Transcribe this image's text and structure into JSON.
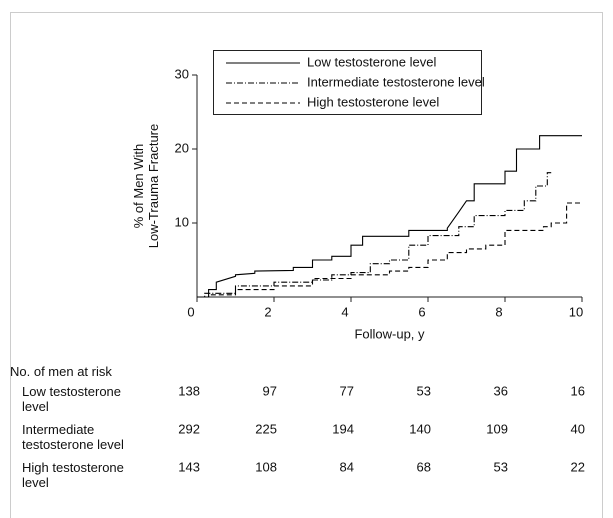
{
  "chart_data": {
    "type": "step-line",
    "xlabel": "Follow-up, y",
    "ylabel": "% of Men With\nLow-Trauma Fracture",
    "xlim": [
      0,
      10
    ],
    "xticks": [
      0,
      2,
      4,
      6,
      8,
      10
    ],
    "ylim": [
      0,
      30
    ],
    "yticks": [
      10,
      20,
      30
    ],
    "legend": "top-left",
    "series": [
      {
        "name": "Low testosterone level",
        "color": "#000000",
        "line_style": "solid",
        "x": [
          0,
          0.3,
          0.3,
          0.5,
          0.5,
          1,
          1,
          1.5,
          1.5,
          2.5,
          2.5,
          3,
          3,
          3.5,
          3.5,
          4,
          4,
          4.3,
          4.3,
          5.5,
          5.5,
          6.5,
          6.5,
          6.8,
          7,
          7.2,
          7.2,
          8,
          8,
          8.3,
          8.3,
          8.9,
          8.9,
          10
        ],
        "values": [
          0,
          0,
          1,
          1,
          2,
          2.8,
          3,
          3.2,
          3.5,
          3.6,
          4,
          4,
          5,
          5,
          5.5,
          5.5,
          7,
          7,
          8.2,
          8.2,
          9,
          9,
          9.3,
          11.5,
          13,
          13,
          15.3,
          15.3,
          17,
          17,
          20,
          20,
          21.8,
          21.8
        ]
      },
      {
        "name": "Intermediate testosterone level",
        "color": "#000000",
        "line_style": "dashdot",
        "x": [
          0,
          0.2,
          0.2,
          1,
          1,
          2,
          2,
          3,
          3,
          3.5,
          3.5,
          4,
          4,
          4.5,
          4.5,
          5,
          5,
          5.5,
          5.5,
          6,
          6,
          6.8,
          6.8,
          7.2,
          7.2,
          8,
          8,
          8.5,
          8.5,
          8.8,
          8.8,
          9.1,
          9.1,
          9.2
        ],
        "values": [
          0,
          0,
          0.5,
          0.5,
          1.5,
          1.5,
          2,
          2,
          2.3,
          2.3,
          3,
          3,
          3.3,
          3.3,
          4.5,
          4.5,
          5,
          5,
          7,
          7,
          8.3,
          8.3,
          9.5,
          9.5,
          11,
          11,
          11.7,
          11.7,
          13,
          13,
          15,
          15,
          16.8,
          16.8
        ]
      },
      {
        "name": "High testosterone level",
        "color": "#000000",
        "line_style": "dashed",
        "x": [
          0,
          0.3,
          0.3,
          1,
          1,
          2,
          2,
          3,
          3,
          4,
          4,
          5,
          5,
          5.5,
          5.5,
          6,
          6,
          6.5,
          6.5,
          7,
          7,
          7.5,
          7.5,
          8,
          8,
          9,
          9,
          9.2,
          9.2,
          9.6,
          9.6,
          10
        ],
        "values": [
          0,
          0,
          0.3,
          0.3,
          1,
          1,
          1.5,
          1.5,
          2.5,
          2.5,
          3,
          3,
          3.5,
          3.5,
          4,
          4,
          5,
          5,
          6,
          6,
          6.5,
          6.5,
          7,
          7,
          9,
          9,
          9.5,
          9.5,
          10,
          10,
          12.7,
          12.7
        ]
      }
    ],
    "risk_table": {
      "title": "No. of men at risk",
      "rows": [
        {
          "label": "Low testosterone\nlevel",
          "values": [
            138,
            97,
            77,
            53,
            36,
            16
          ]
        },
        {
          "label": "Intermediate\ntestosterone level",
          "values": [
            292,
            225,
            194,
            140,
            109,
            40
          ]
        },
        {
          "label": "High testosterone\nlevel",
          "values": [
            143,
            108,
            84,
            68,
            53,
            22
          ]
        }
      ]
    }
  }
}
